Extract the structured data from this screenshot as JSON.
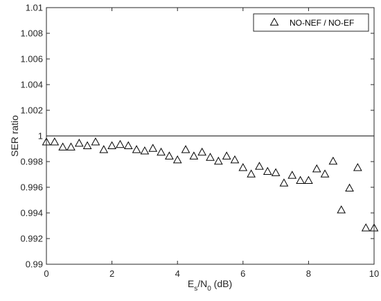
{
  "chart_data": {
    "type": "scatter",
    "xlabel_main": "E",
    "xlabel_sub1": "s",
    "xlabel_slash": "/N",
    "xlabel_sub2": "0",
    "xlabel_tail": " (dB)",
    "ylabel": "SER ratio",
    "xlim": [
      0,
      10
    ],
    "ylim": [
      0.99,
      1.01
    ],
    "x_ticks": [
      0,
      2,
      4,
      6,
      8,
      10
    ],
    "x_tick_labels": [
      "0",
      "2",
      "4",
      "6",
      "8",
      "10"
    ],
    "y_ticks": [
      0.99,
      0.992,
      0.994,
      0.996,
      0.998,
      1.0,
      1.002,
      1.004,
      1.006,
      1.008,
      1.01
    ],
    "y_tick_labels": [
      "0.99",
      "0.992",
      "0.994",
      "0.996",
      "0.998",
      "1",
      "1.002",
      "1.004",
      "1.006",
      "1.008",
      "1.01"
    ],
    "reference_line_y": 1,
    "legend_position": "top-right",
    "grid": false,
    "series": [
      {
        "name": "NO-NEF / NO-EF",
        "marker": "triangle",
        "color": "#000000",
        "x": [
          0,
          0.25,
          0.5,
          0.75,
          1,
          1.25,
          1.5,
          1.75,
          2,
          2.25,
          2.5,
          2.75,
          3,
          3.25,
          3.5,
          3.75,
          4,
          4.25,
          4.5,
          4.75,
          5,
          5.25,
          5.5,
          5.75,
          6,
          6.25,
          6.5,
          6.75,
          7,
          7.25,
          7.5,
          7.75,
          8,
          8.25,
          8.5,
          8.75,
          9,
          9.25,
          9.5,
          9.75,
          10
        ],
        "y": [
          0.9995,
          0.9995,
          0.9991,
          0.9991,
          0.9994,
          0.9992,
          0.9995,
          0.9989,
          0.9992,
          0.9993,
          0.9992,
          0.9989,
          0.9988,
          0.999,
          0.9987,
          0.9984,
          0.9981,
          0.9989,
          0.9984,
          0.9987,
          0.9983,
          0.998,
          0.9984,
          0.9981,
          0.9975,
          0.997,
          0.9976,
          0.9972,
          0.9971,
          0.9963,
          0.9969,
          0.9965,
          0.9965,
          0.9974,
          0.997,
          0.998,
          0.9942,
          0.9959,
          0.9975,
          0.9928,
          0.9928
        ]
      }
    ]
  }
}
